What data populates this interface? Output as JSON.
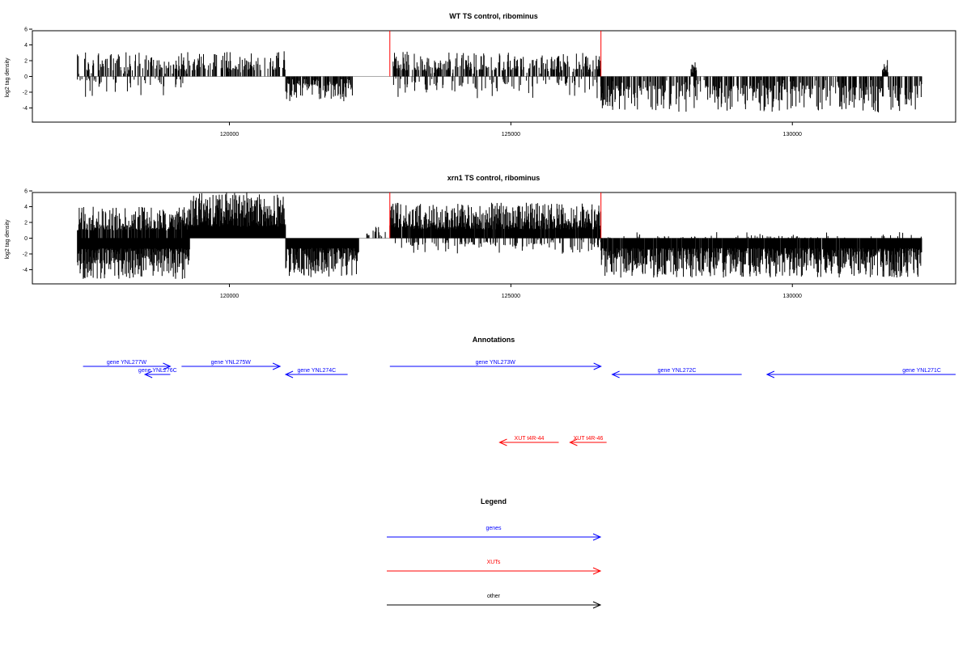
{
  "chart_data": [
    {
      "type": "bar",
      "title": "WT TS control, ribominus",
      "ylabel": "log2 tag density",
      "xlim": [
        116500,
        132900
      ],
      "ylim": [
        -5.8,
        5.8
      ],
      "xticks": [
        120000,
        125000,
        130000
      ],
      "yticks": [
        -4,
        -2,
        0,
        2,
        4,
        6
      ],
      "colors": {
        "bars": "#000000",
        "markers": "#ff0000"
      },
      "markers": [
        {
          "x": 122850,
          "y": 5.8
        },
        {
          "x": 126600,
          "y": 5.8
        }
      ],
      "plus_strand": [
        [
          117300,
          119400,
          0.35,
          0.9,
          3.1
        ],
        [
          119300,
          121000,
          0.45,
          0.9,
          3.2
        ],
        [
          122900,
          126600,
          0.5,
          0.9,
          3.2
        ],
        [
          128200,
          128300,
          1.0,
          1.5,
          1.8
        ],
        [
          131600,
          131700,
          1.0,
          1.6,
          2.1
        ]
      ],
      "minus_strand": [
        [
          117300,
          119200,
          0.15,
          0.5,
          2.6
        ],
        [
          121000,
          122200,
          0.7,
          0.8,
          3.4
        ],
        [
          122900,
          126600,
          0.2,
          0.6,
          2.8
        ],
        [
          126600,
          132300,
          0.55,
          0.9,
          4.6
        ]
      ]
    },
    {
      "type": "bar",
      "title": "xrn1 TS control, ribominus",
      "ylabel": "log2 tag density",
      "xlim": [
        116500,
        132900
      ],
      "ylim": [
        -5.8,
        5.8
      ],
      "xticks": [
        120000,
        125000,
        130000
      ],
      "yticks": [
        -4,
        -2,
        0,
        2,
        4,
        6
      ],
      "colors": {
        "bars": "#000000",
        "markers": "#ff0000"
      },
      "markers": [
        {
          "x": 122850,
          "y": 5.8
        },
        {
          "x": 126600,
          "y": 5.8
        }
      ],
      "plus_strand": [
        [
          117300,
          119300,
          0.8,
          1.0,
          4.0
        ],
        [
          119300,
          121000,
          1.0,
          1.0,
          5.8
        ],
        [
          122400,
          122850,
          0.3,
          0.8,
          1.5
        ],
        [
          122850,
          126600,
          0.95,
          1.0,
          4.5
        ],
        [
          126600,
          132300,
          0.08,
          0.5,
          0.8
        ]
      ],
      "minus_strand": [
        [
          117300,
          119300,
          1.0,
          1.0,
          5.2
        ],
        [
          121000,
          122300,
          1.0,
          1.0,
          5.0
        ],
        [
          122850,
          126600,
          0.25,
          0.8,
          2.0
        ],
        [
          126600,
          132300,
          0.95,
          1.0,
          5.0
        ]
      ]
    }
  ],
  "annotations": {
    "title": "Annotations",
    "genes_color": "#0000ff",
    "xuts_color": "#ff0000",
    "features": [
      {
        "label": "gene YNL277W",
        "x1": 117400,
        "x2": 118950,
        "strand": "+",
        "row": 0,
        "kind": "gene",
        "label_pos": "above"
      },
      {
        "label": "gene YNL276C",
        "x1": 118500,
        "x2": 118950,
        "strand": "-",
        "row": 1,
        "kind": "gene",
        "label_pos": "above"
      },
      {
        "label": "gene YNL275W",
        "x1": 119150,
        "x2": 120900,
        "strand": "+",
        "row": 0,
        "kind": "gene",
        "label_pos": "above"
      },
      {
        "label": "gene YNL274C",
        "x1": 121000,
        "x2": 122100,
        "strand": "-",
        "row": 1,
        "kind": "gene",
        "label_pos": "above"
      },
      {
        "label": "gene YNL273W",
        "x1": 122850,
        "x2": 126600,
        "strand": "+",
        "row": 0,
        "kind": "gene",
        "label_pos": "above"
      },
      {
        "label": "gene YNL272C",
        "x1": 126800,
        "x2": 129100,
        "strand": "-",
        "row": 1,
        "kind": "gene",
        "label_pos": "above"
      },
      {
        "label": "gene YNL271C",
        "x1": 129550,
        "x2": 132900,
        "strand": "-",
        "row": 1,
        "kind": "gene",
        "label_pos": "above-right"
      },
      {
        "label": "XUT t4R-44",
        "x1": 124800,
        "x2": 125850,
        "strand": "-",
        "row": 2,
        "kind": "xut",
        "label_pos": "above"
      },
      {
        "label": "XUT t4R-46",
        "x1": 126050,
        "x2": 126700,
        "strand": "-",
        "row": 2,
        "kind": "xut",
        "label_pos": "above"
      }
    ]
  },
  "legend": {
    "title": "Legend",
    "items": [
      {
        "label": "genes",
        "color": "#0000ff"
      },
      {
        "label": "XUTs",
        "color": "#ff0000"
      },
      {
        "label": "other",
        "color": "#000000"
      }
    ]
  }
}
